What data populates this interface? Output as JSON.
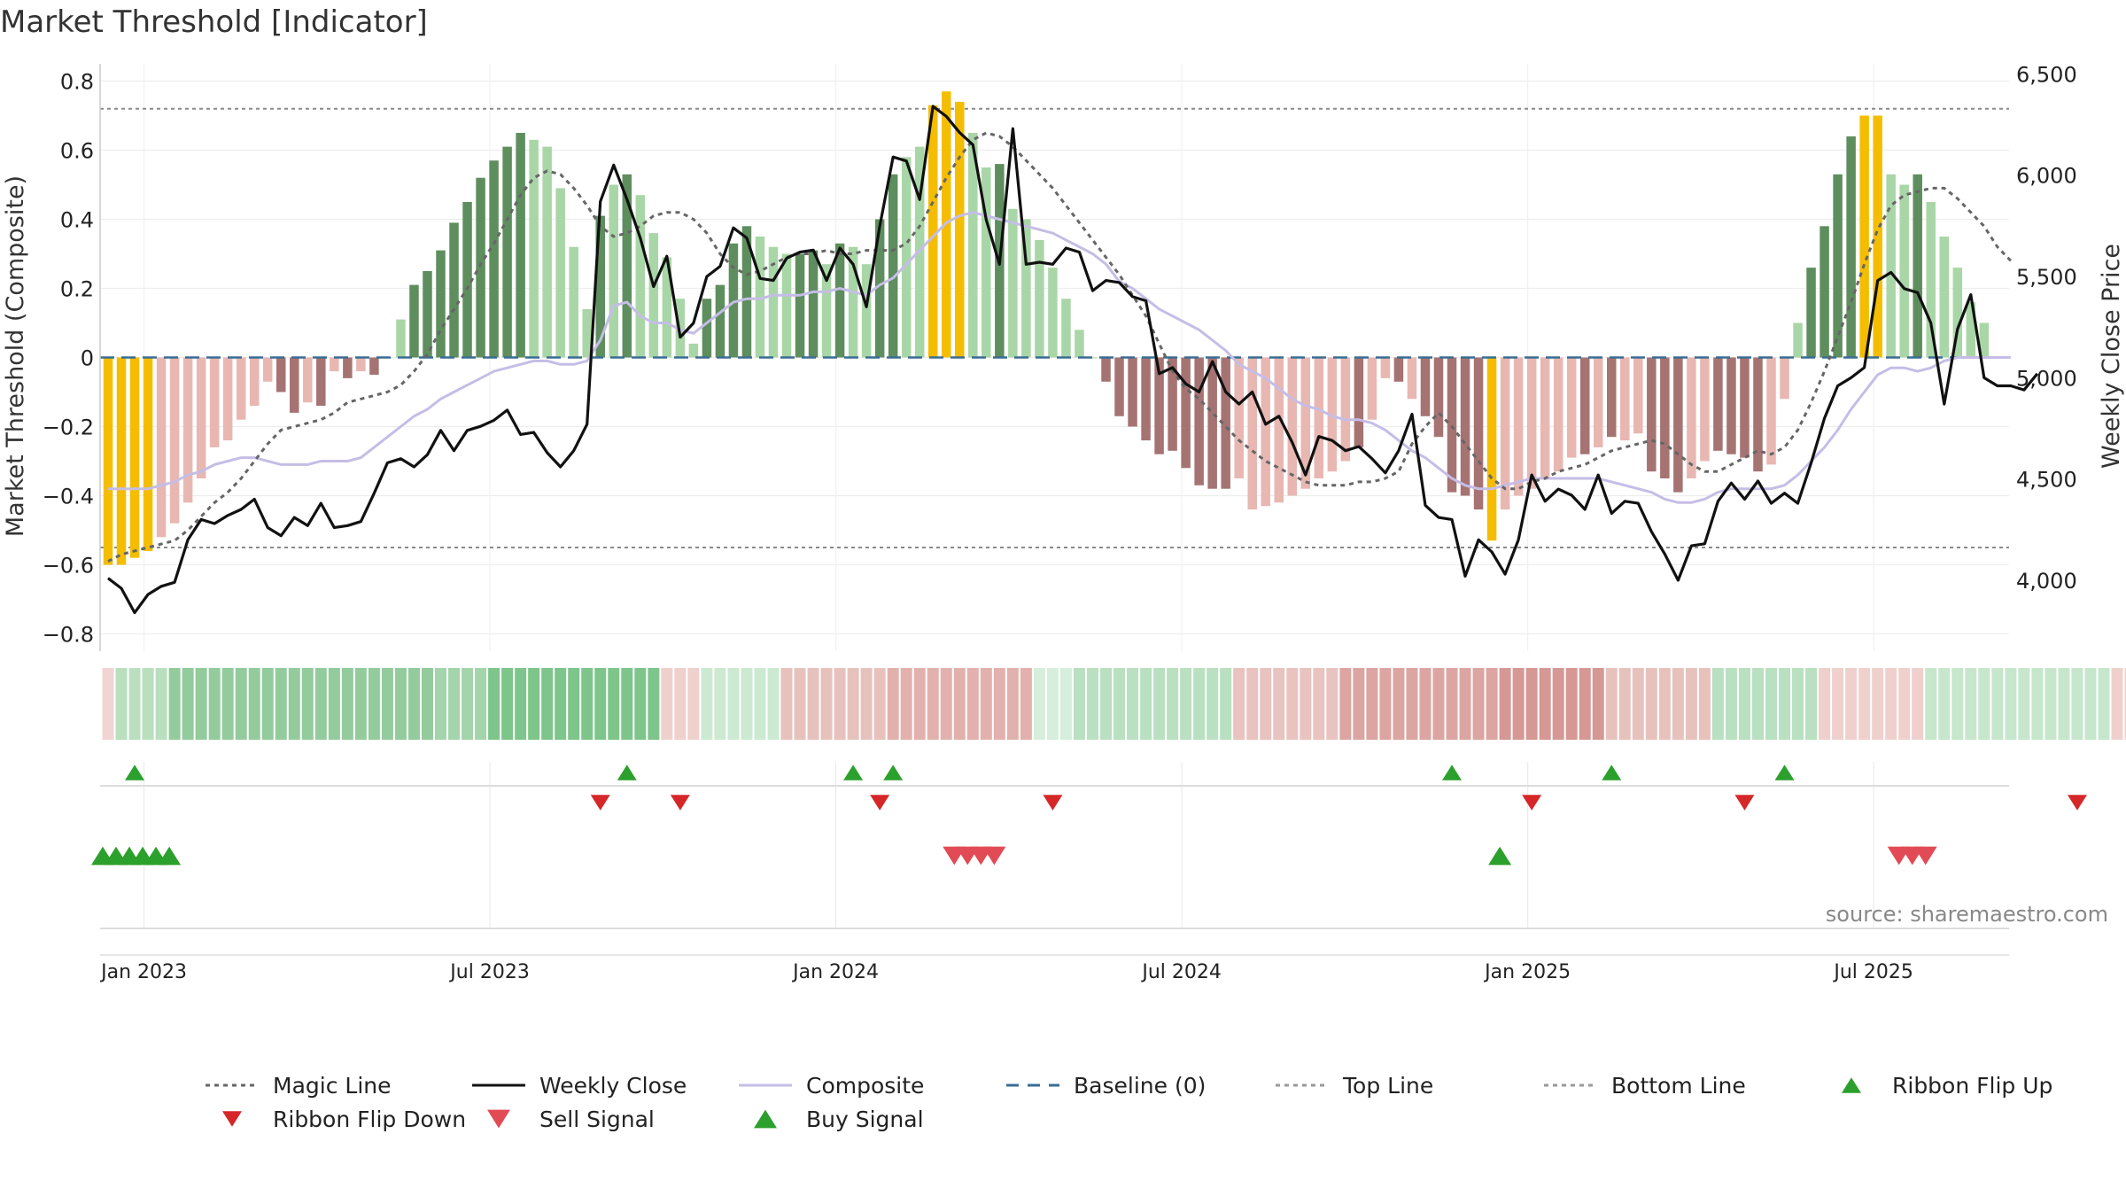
{
  "chart_data": {
    "type": "bar",
    "title": "Market Threshold [Indicator]",
    "ylabel": "Market Threshold (Composite)",
    "y2label": "Weekly Close Price",
    "source": "source: sharemaestro.com",
    "ylim": [
      -0.85,
      0.85
    ],
    "y2lim": [
      3650,
      6550
    ],
    "yticks": [
      0.8,
      0.6,
      0.4,
      0.2,
      0,
      -0.2,
      -0.4,
      -0.6,
      -0.8
    ],
    "yticklabels": [
      "0.8",
      "0.6",
      "0.4",
      "0.2",
      "0",
      "−0.2",
      "−0.4",
      "−0.6",
      "−0.8"
    ],
    "y2ticks": [
      6500,
      6000,
      5500,
      5000,
      4500,
      4000
    ],
    "y2ticklabels": [
      "6,500",
      "6,000",
      "5,500",
      "5,000",
      "4,500",
      "4,000"
    ],
    "top_line": 0.72,
    "bottom_line": -0.55,
    "baseline": 0,
    "x_tick_labels": [
      "Jan 2023",
      "Jul 2023",
      "Jan 2024",
      "Jul 2024",
      "Jan 2025",
      "Jul 2025"
    ],
    "x_tick_weeks": [
      3,
      29,
      55,
      81,
      107,
      133
    ],
    "grid": true,
    "legend_position": "bottom",
    "legend": [
      {
        "label": "Magic Line",
        "icon": "dotted-line-icon",
        "color": "#666666"
      },
      {
        "label": "Weekly Close",
        "icon": "solid-line-icon",
        "color": "#111111"
      },
      {
        "label": "Composite",
        "icon": "solid-line-icon",
        "color": "#c5bde6"
      },
      {
        "label": "Baseline (0)",
        "icon": "dashed-line-icon",
        "color": "#3a6d93"
      },
      {
        "label": "Top Line",
        "icon": "dotted-line-icon",
        "color": "#999999"
      },
      {
        "label": "Bottom Line",
        "icon": "dotted-line-icon",
        "color": "#999999"
      },
      {
        "label": "Ribbon Flip Up",
        "icon": "triangle-up-icon",
        "color": "#2ca02c"
      },
      {
        "label": "Ribbon Flip Down",
        "icon": "triangle-down-icon",
        "color": "#d62728"
      },
      {
        "label": "Sell Signal",
        "icon": "triangle-down-icon",
        "color": "#e24b55"
      },
      {
        "label": "Buy Signal",
        "icon": "triangle-up-icon",
        "color": "#2ca02c"
      }
    ],
    "bar_colors": {
      "Y": "#f5bd00",
      "DG": "#5e8e5e",
      "LG": "#a9d6a7",
      "DR": "#a67373",
      "LR": "#e8b7b2"
    },
    "bars": [
      [
        -0.6,
        "Y"
      ],
      [
        -0.6,
        "Y"
      ],
      [
        -0.58,
        "Y"
      ],
      [
        -0.56,
        "Y"
      ],
      [
        -0.52,
        "LR"
      ],
      [
        -0.48,
        "LR"
      ],
      [
        -0.42,
        "LR"
      ],
      [
        -0.35,
        "LR"
      ],
      [
        -0.26,
        "LR"
      ],
      [
        -0.24,
        "LR"
      ],
      [
        -0.18,
        "LR"
      ],
      [
        -0.14,
        "LR"
      ],
      [
        -0.07,
        "LR"
      ],
      [
        -0.1,
        "DR"
      ],
      [
        -0.16,
        "DR"
      ],
      [
        -0.13,
        "LR"
      ],
      [
        -0.14,
        "DR"
      ],
      [
        -0.04,
        "LR"
      ],
      [
        -0.06,
        "DR"
      ],
      [
        -0.04,
        "LR"
      ],
      [
        -0.05,
        "DR"
      ],
      [
        0,
        "LG"
      ],
      [
        0.11,
        "LG"
      ],
      [
        0.21,
        "DG"
      ],
      [
        0.25,
        "DG"
      ],
      [
        0.31,
        "DG"
      ],
      [
        0.39,
        "DG"
      ],
      [
        0.45,
        "DG"
      ],
      [
        0.52,
        "DG"
      ],
      [
        0.57,
        "DG"
      ],
      [
        0.61,
        "DG"
      ],
      [
        0.65,
        "DG"
      ],
      [
        0.63,
        "LG"
      ],
      [
        0.61,
        "LG"
      ],
      [
        0.49,
        "LG"
      ],
      [
        0.32,
        "LG"
      ],
      [
        0.14,
        "LG"
      ],
      [
        0.41,
        "DG"
      ],
      [
        0.5,
        "LG"
      ],
      [
        0.53,
        "DG"
      ],
      [
        0.47,
        "LG"
      ],
      [
        0.36,
        "LG"
      ],
      [
        0.29,
        "LG"
      ],
      [
        0.17,
        "LG"
      ],
      [
        0.04,
        "LG"
      ],
      [
        0.17,
        "DG"
      ],
      [
        0.21,
        "DG"
      ],
      [
        0.33,
        "DG"
      ],
      [
        0.38,
        "DG"
      ],
      [
        0.35,
        "LG"
      ],
      [
        0.32,
        "LG"
      ],
      [
        0.3,
        "LG"
      ],
      [
        0.3,
        "DG"
      ],
      [
        0.31,
        "DG"
      ],
      [
        0.27,
        "LG"
      ],
      [
        0.33,
        "DG"
      ],
      [
        0.32,
        "LG"
      ],
      [
        0.27,
        "LG"
      ],
      [
        0.4,
        "DG"
      ],
      [
        0.53,
        "DG"
      ],
      [
        0.58,
        "LG"
      ],
      [
        0.61,
        "LG"
      ],
      [
        0.73,
        "Y"
      ],
      [
        0.77,
        "Y"
      ],
      [
        0.74,
        "Y"
      ],
      [
        0.65,
        "LG"
      ],
      [
        0.55,
        "LG"
      ],
      [
        0.56,
        "DG"
      ],
      [
        0.43,
        "LG"
      ],
      [
        0.4,
        "LG"
      ],
      [
        0.34,
        "LG"
      ],
      [
        0.26,
        "LG"
      ],
      [
        0.17,
        "LG"
      ],
      [
        0.08,
        "LG"
      ],
      [
        0,
        "LG"
      ],
      [
        -0.07,
        "DR"
      ],
      [
        -0.17,
        "DR"
      ],
      [
        -0.2,
        "DR"
      ],
      [
        -0.24,
        "DR"
      ],
      [
        -0.28,
        "DR"
      ],
      [
        -0.27,
        "DR"
      ],
      [
        -0.32,
        "DR"
      ],
      [
        -0.37,
        "DR"
      ],
      [
        -0.38,
        "DR"
      ],
      [
        -0.38,
        "DR"
      ],
      [
        -0.35,
        "LR"
      ],
      [
        -0.44,
        "LR"
      ],
      [
        -0.43,
        "LR"
      ],
      [
        -0.42,
        "LR"
      ],
      [
        -0.4,
        "LR"
      ],
      [
        -0.38,
        "LR"
      ],
      [
        -0.35,
        "LR"
      ],
      [
        -0.33,
        "LR"
      ],
      [
        -0.3,
        "LR"
      ],
      [
        -0.26,
        "DR"
      ],
      [
        -0.18,
        "LR"
      ],
      [
        -0.06,
        "LR"
      ],
      [
        -0.07,
        "DR"
      ],
      [
        -0.12,
        "LR"
      ],
      [
        -0.17,
        "DR"
      ],
      [
        -0.23,
        "DR"
      ],
      [
        -0.39,
        "DR"
      ],
      [
        -0.4,
        "DR"
      ],
      [
        -0.44,
        "DR"
      ],
      [
        -0.53,
        "Y"
      ],
      [
        -0.44,
        "LR"
      ],
      [
        -0.4,
        "LR"
      ],
      [
        -0.38,
        "LR"
      ],
      [
        -0.35,
        "LR"
      ],
      [
        -0.33,
        "LR"
      ],
      [
        -0.29,
        "LR"
      ],
      [
        -0.28,
        "DR"
      ],
      [
        -0.26,
        "LR"
      ],
      [
        -0.23,
        "DR"
      ],
      [
        -0.24,
        "LR"
      ],
      [
        -0.22,
        "LR"
      ],
      [
        -0.33,
        "DR"
      ],
      [
        -0.35,
        "DR"
      ],
      [
        -0.39,
        "DR"
      ],
      [
        -0.35,
        "LR"
      ],
      [
        -0.3,
        "LR"
      ],
      [
        -0.27,
        "DR"
      ],
      [
        -0.28,
        "DR"
      ],
      [
        -0.29,
        "DR"
      ],
      [
        -0.33,
        "DR"
      ],
      [
        -0.31,
        "LR"
      ],
      [
        -0.12,
        "LR"
      ],
      [
        0.1,
        "LG"
      ],
      [
        0.26,
        "DG"
      ],
      [
        0.38,
        "DG"
      ],
      [
        0.53,
        "DG"
      ],
      [
        0.64,
        "DG"
      ],
      [
        0.7,
        "Y"
      ],
      [
        0.7,
        "Y"
      ],
      [
        0.53,
        "LG"
      ],
      [
        0.5,
        "LG"
      ],
      [
        0.53,
        "DG"
      ],
      [
        0.45,
        "LG"
      ],
      [
        0.35,
        "LG"
      ],
      [
        0.26,
        "LG"
      ],
      [
        0.16,
        "LG"
      ],
      [
        0.1,
        "LG"
      ]
    ],
    "weekly_close": [
      4010,
      3960,
      3840,
      3930,
      3970,
      3990,
      4200,
      4300,
      4280,
      4320,
      4350,
      4400,
      4260,
      4220,
      4310,
      4270,
      4380,
      4260,
      4270,
      4290,
      4430,
      4580,
      4600,
      4560,
      4620,
      4740,
      4640,
      4740,
      4760,
      4790,
      4840,
      4720,
      4730,
      4630,
      4560,
      4640,
      4770,
      5870,
      6050,
      5880,
      5690,
      5450,
      5600,
      5200,
      5270,
      5500,
      5550,
      5740,
      5690,
      5490,
      5480,
      5590,
      5620,
      5630,
      5480,
      5640,
      5560,
      5350,
      5750,
      6090,
      6070,
      5880,
      6340,
      6290,
      6210,
      6150,
      5780,
      5560,
      6230,
      5560,
      5570,
      5560,
      5640,
      5620,
      5430,
      5480,
      5470,
      5400,
      5380,
      5020,
      5050,
      4970,
      4930,
      5080,
      4930,
      4870,
      4930,
      4770,
      4810,
      4680,
      4520,
      4710,
      4690,
      4640,
      4660,
      4600,
      4530,
      4640,
      4820,
      4370,
      4310,
      4300,
      4020,
      4200,
      4140,
      4030,
      4200,
      4520,
      4390,
      4450,
      4420,
      4350,
      4520,
      4330,
      4390,
      4380,
      4240,
      4130,
      4000,
      4170,
      4180,
      4390,
      4480,
      4400,
      4490,
      4380,
      4430,
      4380,
      4580,
      4800,
      4960,
      5000,
      5050,
      5480,
      5520,
      5440,
      5420,
      5270,
      4870,
      5240,
      5410,
      5000,
      4960,
      4960,
      4940,
      5020
    ],
    "composite": [
      -0.38,
      -0.38,
      -0.38,
      -0.38,
      -0.37,
      -0.36,
      -0.34,
      -0.33,
      -0.31,
      -0.3,
      -0.29,
      -0.29,
      -0.3,
      -0.31,
      -0.31,
      -0.31,
      -0.3,
      -0.3,
      -0.3,
      -0.29,
      -0.26,
      -0.23,
      -0.2,
      -0.17,
      -0.15,
      -0.12,
      -0.1,
      -0.08,
      -0.06,
      -0.04,
      -0.03,
      -0.02,
      -0.01,
      -0.01,
      -0.02,
      -0.02,
      -0.01,
      0.05,
      0.15,
      0.16,
      0.12,
      0.1,
      0.1,
      0.08,
      0.07,
      0.1,
      0.13,
      0.16,
      0.17,
      0.17,
      0.18,
      0.18,
      0.18,
      0.19,
      0.19,
      0.2,
      0.19,
      0.18,
      0.21,
      0.23,
      0.27,
      0.31,
      0.35,
      0.39,
      0.41,
      0.42,
      0.41,
      0.4,
      0.39,
      0.38,
      0.37,
      0.36,
      0.34,
      0.32,
      0.3,
      0.27,
      0.22,
      0.2,
      0.17,
      0.14,
      0.12,
      0.1,
      0.08,
      0.05,
      0.02,
      -0.02,
      -0.04,
      -0.06,
      -0.09,
      -0.12,
      -0.14,
      -0.15,
      -0.17,
      -0.18,
      -0.18,
      -0.19,
      -0.21,
      -0.24,
      -0.27,
      -0.29,
      -0.32,
      -0.35,
      -0.37,
      -0.38,
      -0.38,
      -0.37,
      -0.36,
      -0.35,
      -0.35,
      -0.35,
      -0.35,
      -0.35,
      -0.35,
      -0.36,
      -0.37,
      -0.38,
      -0.39,
      -0.41,
      -0.42,
      -0.42,
      -0.41,
      -0.39,
      -0.38,
      -0.38,
      -0.38,
      -0.38,
      -0.37,
      -0.34,
      -0.3,
      -0.26,
      -0.21,
      -0.15,
      -0.1,
      -0.05,
      -0.03,
      -0.03,
      -0.04,
      -0.03,
      -0.01,
      0,
      0,
      0,
      0,
      0
    ],
    "magic_line": [
      -0.59,
      -0.57,
      -0.56,
      -0.55,
      -0.54,
      -0.53,
      -0.5,
      -0.46,
      -0.42,
      -0.39,
      -0.35,
      -0.3,
      -0.25,
      -0.21,
      -0.2,
      -0.19,
      -0.18,
      -0.16,
      -0.13,
      -0.12,
      -0.11,
      -0.1,
      -0.08,
      -0.04,
      0.01,
      0.08,
      0.14,
      0.2,
      0.27,
      0.33,
      0.4,
      0.47,
      0.52,
      0.54,
      0.53,
      0.49,
      0.44,
      0.38,
      0.35,
      0.36,
      0.38,
      0.41,
      0.42,
      0.42,
      0.4,
      0.36,
      0.3,
      0.26,
      0.24,
      0.25,
      0.27,
      0.29,
      0.3,
      0.3,
      0.31,
      0.3,
      0.3,
      0.31,
      0.31,
      0.31,
      0.33,
      0.38,
      0.45,
      0.52,
      0.58,
      0.63,
      0.65,
      0.64,
      0.61,
      0.57,
      0.53,
      0.49,
      0.44,
      0.39,
      0.34,
      0.29,
      0.24,
      0.18,
      0.12,
      0.04,
      -0.04,
      -0.09,
      -0.12,
      -0.16,
      -0.2,
      -0.24,
      -0.27,
      -0.3,
      -0.32,
      -0.34,
      -0.36,
      -0.37,
      -0.37,
      -0.37,
      -0.36,
      -0.36,
      -0.35,
      -0.33,
      -0.25,
      -0.2,
      -0.16,
      -0.2,
      -0.25,
      -0.3,
      -0.35,
      -0.38,
      -0.38,
      -0.36,
      -0.35,
      -0.33,
      -0.32,
      -0.31,
      -0.29,
      -0.27,
      -0.26,
      -0.25,
      -0.24,
      -0.25,
      -0.28,
      -0.31,
      -0.33,
      -0.33,
      -0.31,
      -0.29,
      -0.27,
      -0.28,
      -0.26,
      -0.21,
      -0.13,
      -0.04,
      0.06,
      0.16,
      0.27,
      0.37,
      0.44,
      0.47,
      0.48,
      0.49,
      0.49,
      0.46,
      0.42,
      0.38,
      0.32,
      0.28
    ],
    "ribbon": [
      [
        "#f0d5d3",
        1
      ],
      [
        "#b9dfbf",
        4
      ],
      [
        "#93cb9d",
        20
      ],
      [
        "#a4d4ab",
        4
      ],
      [
        "#7ec58b",
        13
      ],
      [
        "#efd0cd",
        3
      ],
      [
        "#cce9d1",
        6
      ],
      [
        "#e7c2bd",
        8
      ],
      [
        "#e3b1ad",
        11
      ],
      [
        "#d6eedc",
        3
      ],
      [
        "#b9e0c0",
        12
      ],
      [
        "#e8c3bf",
        8
      ],
      [
        "#dca5a1",
        12
      ],
      [
        "#d69895",
        8
      ],
      [
        "#e7c2bd",
        8
      ],
      [
        "#b9e0c0",
        8
      ],
      [
        "#efd0cd",
        8
      ],
      [
        "#c6e7cc",
        14
      ],
      [
        "#efd0cd",
        6
      ],
      [
        "#d6eedc",
        10
      ],
      [
        "#a4d4ab",
        4
      ],
      [
        "#6cbc7c",
        2
      ],
      [
        "#4aa85e",
        6
      ],
      [
        "#7ec58b",
        4
      ],
      [
        "#a4d4ab",
        3
      ],
      [
        "#efd0cd",
        2
      ]
    ],
    "ribbon_flip_up_weeks": [
      2,
      39,
      56,
      59,
      101,
      113,
      126
    ],
    "ribbon_flip_down_weeks": [
      37,
      43,
      58,
      71,
      107,
      123,
      148
    ],
    "sell_signal_weeks": [
      64,
      65,
      66,
      67,
      135,
      136,
      137
    ],
    "buy_signal_weeks": [
      0,
      1,
      2,
      3,
      4,
      5,
      105
    ]
  }
}
